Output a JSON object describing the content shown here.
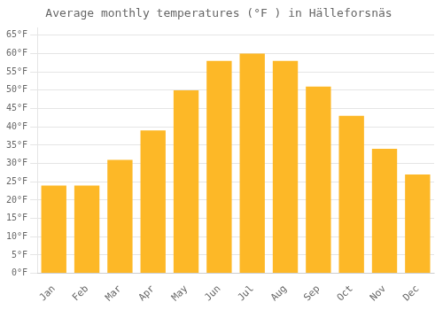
{
  "chart_data": {
    "type": "bar",
    "title": "Average monthly temperatures (°F ) in Hälleforsnäs",
    "categories": [
      "Jan",
      "Feb",
      "Mar",
      "Apr",
      "May",
      "Jun",
      "Jul",
      "Aug",
      "Sep",
      "Oct",
      "Nov",
      "Dec"
    ],
    "values": [
      24,
      24,
      31,
      39,
      50,
      58,
      60,
      58,
      51,
      43,
      34,
      27
    ],
    "color": "#FDB827",
    "ylim": [
      0,
      67
    ],
    "yticks": [
      {
        "value": 0,
        "label": "0°F"
      },
      {
        "value": 5,
        "label": "5°F"
      },
      {
        "value": 10,
        "label": "10°F"
      },
      {
        "value": 15,
        "label": "15°F"
      },
      {
        "value": 20,
        "label": "20°F"
      },
      {
        "value": 25,
        "label": "25°F"
      },
      {
        "value": 30,
        "label": "30°F"
      },
      {
        "value": 35,
        "label": "35°F"
      },
      {
        "value": 40,
        "label": "40°F"
      },
      {
        "value": 45,
        "label": "45°F"
      },
      {
        "value": 50,
        "label": "50°F"
      },
      {
        "value": 55,
        "label": "55°F"
      },
      {
        "value": 60,
        "label": "60°F"
      },
      {
        "value": 65,
        "label": "65°F"
      }
    ],
    "grid": true
  }
}
